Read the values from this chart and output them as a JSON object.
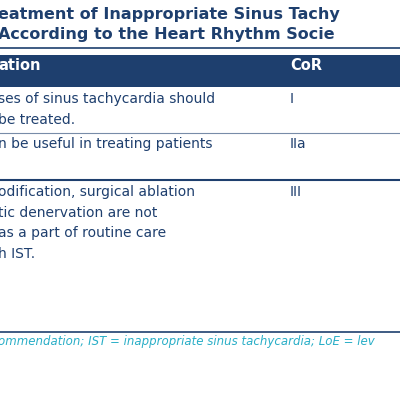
{
  "title_line1": "eatment of Inappropriate Sinus Tachy",
  "title_line2": "According to the Heart Rhythm Socie",
  "title_color": "#1a3a6b",
  "header_bg": "#1e3f6e",
  "header_text_color": "#ffffff",
  "header_col1": "ation",
  "header_col2": "CoR",
  "rows": [
    {
      "rec": "ses of sinus tachycardia should\nbe treated.",
      "cor": "I"
    },
    {
      "rec": "n be useful in treating patients",
      "cor": "IIa"
    },
    {
      "rec": "odification, surgical ablation\ntic denervation are not\nas a part of routine care\nh IST.",
      "cor": "III"
    }
  ],
  "footer_text": "ommendation; IST = inappropriate sinus tachycardia; LoE = lev",
  "footer_color": "#29aec7",
  "divider_color": "#1e3f6e",
  "text_color": "#1e3f6e",
  "bg_color": "#ffffff",
  "figsize": [
    4.0,
    4.0
  ],
  "dpi": 100
}
